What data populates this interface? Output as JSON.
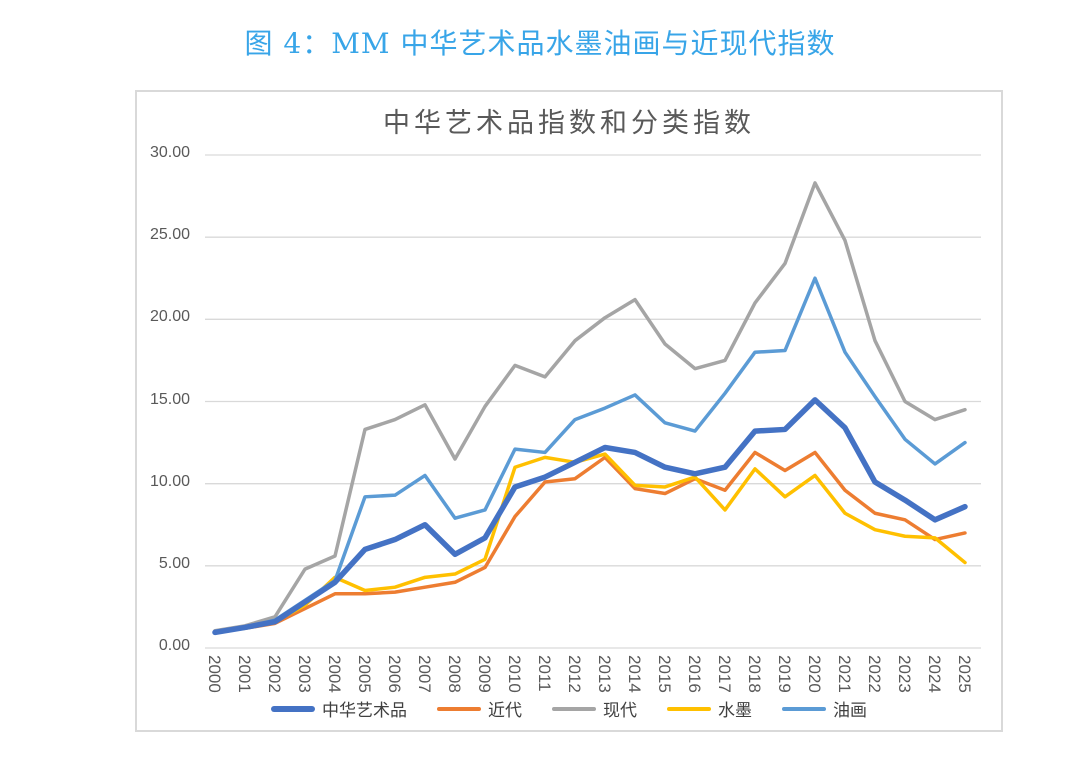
{
  "caption": "图 4：MM 中华艺术品水墨油画与近现代指数",
  "caption_color": "#38A5E8",
  "chart_data": {
    "type": "line",
    "title": "中华艺术品指数和分类指数",
    "title_color": "#595959",
    "x": [
      2000,
      2001,
      2002,
      2003,
      2004,
      2005,
      2006,
      2007,
      2008,
      2009,
      2010,
      2011,
      2012,
      2013,
      2014,
      2015,
      2016,
      2017,
      2018,
      2019,
      2020,
      2021,
      2022,
      2023,
      2024,
      2025
    ],
    "xlabel": "",
    "ylabel": "",
    "ylim": [
      0,
      30
    ],
    "ytick_step": 5,
    "yticks": [
      "0.00",
      "5.00",
      "10.00",
      "15.00",
      "20.00",
      "25.00",
      "30.00"
    ],
    "grid": true,
    "grid_color": "#D9D9D9",
    "legend_position": "bottom",
    "series": [
      {
        "name": "中华艺术品",
        "color": "#4472C4",
        "width": 5.5,
        "values": [
          0.95,
          1.25,
          1.6,
          2.8,
          4.0,
          6.0,
          6.6,
          7.5,
          5.7,
          6.7,
          9.8,
          10.4,
          11.3,
          12.2,
          11.9,
          11.0,
          10.6,
          11.0,
          13.2,
          13.3,
          15.1,
          13.4,
          10.1,
          9.0,
          7.8,
          8.6
        ]
      },
      {
        "name": "近代",
        "color": "#ED7D31",
        "width": 3.5,
        "values": [
          1.0,
          1.2,
          1.5,
          2.4,
          3.3,
          3.3,
          3.4,
          3.7,
          4.0,
          4.9,
          8.0,
          10.1,
          10.3,
          11.6,
          9.7,
          9.4,
          10.3,
          9.6,
          11.9,
          10.8,
          11.9,
          9.6,
          8.2,
          7.8,
          6.6,
          7.0
        ]
      },
      {
        "name": "现代",
        "color": "#A5A5A5",
        "width": 3.5,
        "values": [
          1.05,
          1.35,
          1.9,
          4.8,
          5.6,
          13.3,
          13.9,
          14.8,
          11.5,
          14.7,
          17.2,
          16.5,
          18.7,
          20.1,
          21.2,
          18.5,
          17.0,
          17.5,
          21.0,
          23.4,
          28.3,
          24.8,
          18.7,
          15.0,
          13.9,
          14.5
        ]
      },
      {
        "name": "水墨",
        "color": "#FFC000",
        "width": 3.5,
        "values": [
          1.0,
          1.2,
          1.6,
          2.6,
          4.3,
          3.5,
          3.7,
          4.3,
          4.5,
          5.4,
          11.0,
          11.6,
          11.3,
          11.8,
          9.9,
          9.8,
          10.4,
          8.4,
          10.9,
          9.2,
          10.5,
          8.2,
          7.2,
          6.8,
          6.7,
          5.2
        ]
      },
      {
        "name": "油画",
        "color": "#5B9BD5",
        "width": 3.5,
        "values": [
          0.95,
          1.25,
          1.7,
          2.9,
          4.1,
          9.2,
          9.3,
          10.5,
          7.9,
          8.4,
          12.1,
          11.9,
          13.9,
          14.6,
          15.4,
          13.7,
          13.2,
          15.5,
          18.0,
          18.1,
          22.5,
          18.0,
          15.3,
          12.7,
          11.2,
          12.5
        ]
      }
    ]
  }
}
